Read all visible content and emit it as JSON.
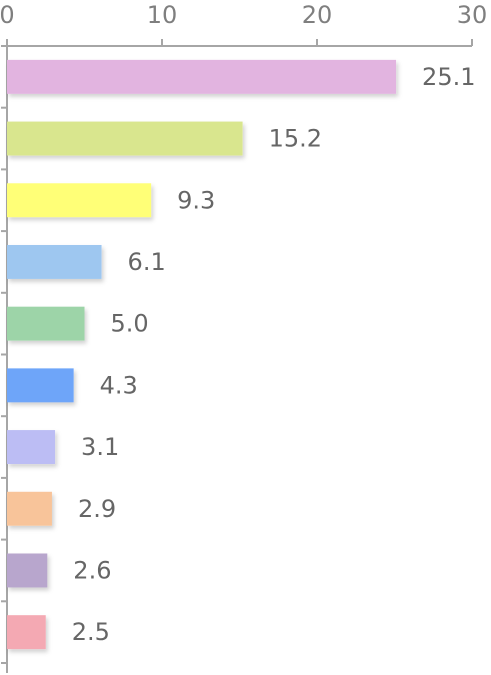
{
  "chart_data": {
    "type": "bar",
    "orientation": "horizontal",
    "title": "",
    "xlabel": "",
    "ylabel": "",
    "xlim": [
      0,
      30
    ],
    "x_ticks": [
      0,
      10,
      20,
      30
    ],
    "x_tick_labels": [
      "0",
      "10",
      "20",
      "30"
    ],
    "grid": false,
    "legend": "none",
    "values": [
      25.1,
      15.2,
      9.3,
      6.1,
      5.0,
      4.3,
      3.1,
      2.9,
      2.6,
      2.5
    ],
    "value_labels": [
      "25.1",
      "15.2",
      "9.3",
      "6.1",
      "5.0",
      "4.3",
      "3.1",
      "2.9",
      "2.6",
      "2.5"
    ],
    "colors": [
      "#e2b4e0",
      "#d9e68e",
      "#ffff77",
      "#9ec7f0",
      "#9dd4a8",
      "#6ea5f9",
      "#bcbdf4",
      "#f8c49a",
      "#b8a6cd",
      "#f4a9b3"
    ]
  }
}
